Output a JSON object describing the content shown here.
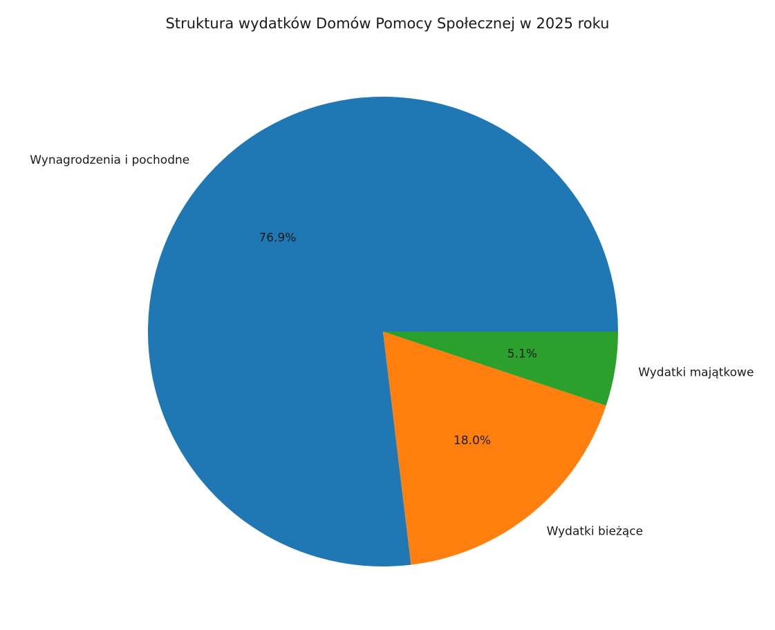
{
  "chart_data": {
    "type": "pie",
    "title": "Struktura wydatków Domów Pomocy Społecznej w 2025 roku",
    "slices": [
      {
        "label": "Wynagrodzenia i pochodne",
        "value": 76.9,
        "value_label": "76.9%",
        "color": "#1f77b4"
      },
      {
        "label": "Wydatki bieżące",
        "value": 18.0,
        "value_label": "18.0%",
        "color": "#ff7f0e"
      },
      {
        "label": "Wydatki majątkowe",
        "value": 5.1,
        "value_label": "5.1%",
        "color": "#2ca02c"
      }
    ],
    "start_angle_deg": 0,
    "direction": "counterclockwise"
  }
}
